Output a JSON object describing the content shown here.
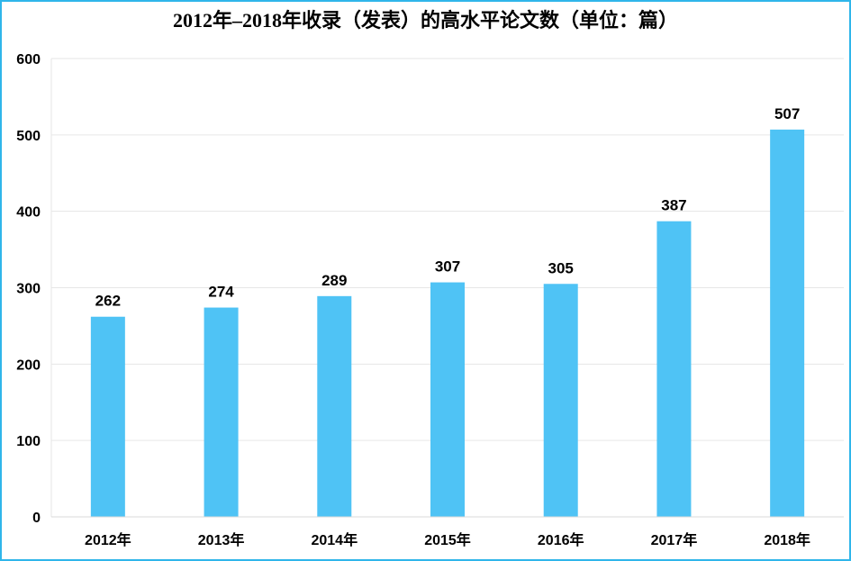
{
  "chart_data": {
    "type": "bar",
    "title": "2012年–2018年收录（发表）的高水平论文数（单位：篇）",
    "categories": [
      "2012年",
      "2013年",
      "2014年",
      "2015年",
      "2016年",
      "2017年",
      "2018年"
    ],
    "values": [
      262,
      274,
      289,
      307,
      305,
      387,
      507
    ],
    "data_labels": [
      "262",
      "274",
      "289",
      "307",
      "305",
      "387",
      "507"
    ],
    "ylim": [
      0,
      600
    ],
    "yticks": [
      0,
      100,
      200,
      300,
      400,
      500,
      600
    ],
    "xlabel": "",
    "ylabel": "",
    "grid": true,
    "legend": "none",
    "colors": {
      "bar": "#4fc3f5",
      "border": "#2fb6ea",
      "grid": "#e6e6e6"
    }
  }
}
